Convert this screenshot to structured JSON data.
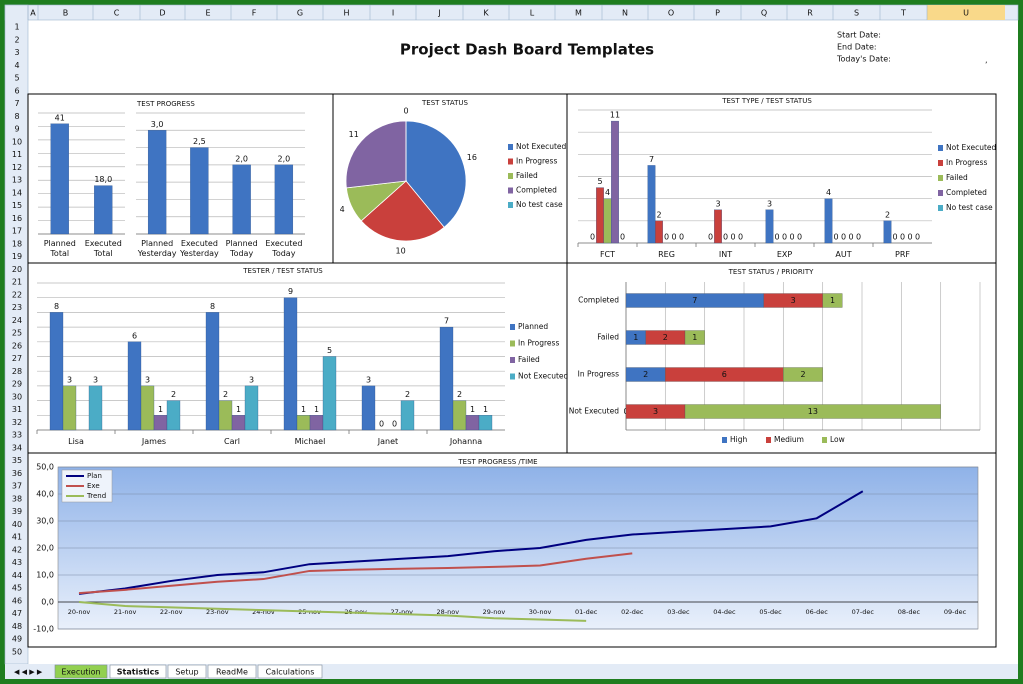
{
  "spreadsheet": {
    "columns": [
      "A",
      "B",
      "C",
      "D",
      "E",
      "F",
      "G",
      "H",
      "I",
      "J",
      "K",
      "L",
      "M",
      "N",
      "O",
      "P",
      "Q",
      "R",
      "S",
      "T",
      "U"
    ],
    "rows": [
      1,
      2,
      3,
      4,
      5,
      6,
      7,
      8,
      9,
      10,
      11,
      12,
      13,
      14,
      15,
      16,
      17,
      18,
      19,
      20,
      21,
      22,
      23,
      24,
      25,
      26,
      27,
      28,
      29,
      30,
      31,
      32,
      33,
      34,
      35,
      36,
      37,
      38,
      39,
      40,
      41,
      42,
      43,
      44,
      45,
      46,
      47,
      48,
      49,
      50
    ],
    "title": "Project Dash Board Templates",
    "date_labels": [
      "Start Date:",
      "End Date:",
      "Today's Date:"
    ],
    "mark": ",",
    "sheet_tabs": [
      "Execution",
      "Statistics",
      "Setup",
      "ReadMe",
      "Calculations"
    ]
  },
  "chart_data": [
    {
      "type": "bar",
      "title": "TEST PROGRESS",
      "categories": [
        "Planned Total",
        "Executed Total"
      ],
      "values": [
        41,
        18
      ],
      "value_labels": [
        "41",
        "18,0"
      ],
      "color": "#3f74c2",
      "ylim": [
        0,
        45
      ],
      "yticks": [
        0,
        5,
        10,
        15,
        20,
        25,
        30,
        35,
        40,
        45
      ],
      "grid": true
    },
    {
      "type": "bar",
      "categories": [
        "Planned Yesterday",
        "Executed Yesterday",
        "Planned Today",
        "Executed Today"
      ],
      "values": [
        3,
        2.5,
        2,
        2
      ],
      "value_labels": [
        "3,0",
        "2,5",
        "2,0",
        "2,0"
      ],
      "color": "#3f74c2",
      "ylim": [
        0,
        3.5
      ],
      "yticks": [
        0,
        0.5,
        1,
        1.5,
        2,
        2.5,
        3,
        3.5
      ],
      "grid": true
    },
    {
      "type": "pie",
      "title": "TEST STATUS",
      "categories": [
        "Not Executed",
        "In Progress",
        "Failed",
        "Completed",
        "No test case"
      ],
      "values": [
        16,
        10,
        4,
        11,
        0
      ],
      "colors": [
        "#3f74c2",
        "#c9403c",
        "#9bbb59",
        "#8064a2",
        "#4bacc6"
      ],
      "legend": "right"
    },
    {
      "type": "bar",
      "title": "TEST TYPE / TEST STATUS",
      "categories": [
        "FCT",
        "REG",
        "INT",
        "EXP",
        "AUT",
        "PRF"
      ],
      "series": [
        {
          "name": "Not Executed",
          "color": "#3f74c2",
          "values": [
            0,
            7,
            0,
            3,
            4,
            2
          ]
        },
        {
          "name": "In Progress",
          "color": "#c9403c",
          "values": [
            5,
            2,
            3,
            0,
            0,
            0
          ]
        },
        {
          "name": "Failed",
          "color": "#9bbb59",
          "values": [
            4,
            0,
            0,
            0,
            0,
            0
          ]
        },
        {
          "name": "Completed",
          "color": "#8064a2",
          "values": [
            11,
            0,
            0,
            0,
            0,
            0
          ]
        },
        {
          "name": "No test case",
          "color": "#4bacc6",
          "values": [
            0,
            0,
            0,
            0,
            0,
            0
          ]
        }
      ],
      "ylim": [
        0,
        12
      ],
      "yticks": [
        0,
        2,
        4,
        6,
        8,
        10,
        12
      ],
      "grid": true,
      "legend": "right"
    },
    {
      "type": "bar",
      "title": "TESTER / TEST STATUS",
      "categories": [
        "Lisa",
        "James",
        "Carl",
        "Michael",
        "Janet",
        "Johanna"
      ],
      "series": [
        {
          "name": "Planned",
          "color": "#3f74c2",
          "values": [
            8,
            6,
            8,
            9,
            3,
            7
          ]
        },
        {
          "name": "In Progress",
          "color": "#9bbb59",
          "values": [
            3,
            3,
            2,
            1,
            0,
            2
          ]
        },
        {
          "name": "Failed",
          "color": "#8064a2",
          "values": [
            null,
            1,
            1,
            1,
            0,
            1
          ]
        },
        {
          "name": "Not Executed",
          "color": "#4bacc6",
          "values": [
            3,
            2,
            3,
            5,
            2,
            1
          ]
        }
      ],
      "ylim": [
        0,
        10
      ],
      "yticks": [
        0,
        1,
        2,
        3,
        4,
        5,
        6,
        7,
        8,
        9,
        10
      ],
      "grid": true,
      "legend": "right"
    },
    {
      "type": "barh_stacked",
      "title": "TEST STATUS / PRIORITY",
      "categories": [
        "Completed",
        "Failed",
        "In Progress",
        "Not Executed"
      ],
      "series": [
        {
          "name": "High",
          "color": "#3f74c2",
          "values": [
            7,
            1,
            2,
            0
          ]
        },
        {
          "name": "Medium",
          "color": "#c9403c",
          "values": [
            3,
            2,
            6,
            3
          ]
        },
        {
          "name": "Low",
          "color": "#9bbb59",
          "values": [
            1,
            1,
            2,
            13
          ]
        }
      ],
      "xlim": [
        0,
        18
      ],
      "xticks": [
        0,
        2,
        4,
        6,
        8,
        10,
        12,
        14,
        16,
        18
      ],
      "grid": true,
      "legend": "bottom"
    },
    {
      "type": "line",
      "title": "TEST PROGRESS /TIME",
      "x": [
        "20-nov",
        "21-nov",
        "22-nov",
        "23-nov",
        "24-nov",
        "25-nov",
        "26-nov",
        "27-nov",
        "28-nov",
        "29-nov",
        "30-nov",
        "01-dec",
        "02-dec",
        "03-dec",
        "04-dec",
        "05-dec",
        "06-dec",
        "07-dec",
        "08-dec",
        "09-dec"
      ],
      "series": [
        {
          "name": "Plan",
          "color": "#000080",
          "values": [
            3,
            5,
            7.8,
            10,
            11,
            14,
            15,
            16,
            17,
            18.8,
            20,
            23,
            25,
            26,
            27,
            28,
            31,
            41,
            null,
            null
          ]
        },
        {
          "name": "Exe",
          "color": "#c0504d",
          "values": [
            3.3,
            4.5,
            6,
            7.5,
            8.5,
            11.5,
            12,
            12.3,
            12.6,
            13,
            13.5,
            16,
            18,
            null,
            null,
            null,
            null,
            null,
            null,
            null
          ]
        },
        {
          "name": "Trend",
          "color": "#9bbb59",
          "values": [
            0,
            -1.5,
            -2,
            -2.5,
            -3,
            -3.5,
            -4,
            -4.5,
            -5,
            -6,
            -6.5,
            -7,
            null,
            null,
            null,
            null,
            null,
            null,
            null,
            null
          ]
        }
      ],
      "ylim": [
        -10,
        50
      ],
      "yticks": [
        {
          "value": -10,
          "label": "-10,0"
        },
        {
          "value": 0,
          "label": "0,0"
        },
        {
          "value": 10,
          "label": "10,0"
        },
        {
          "value": 20,
          "label": "20,0"
        },
        {
          "value": 30,
          "label": "30,0"
        },
        {
          "value": 40,
          "label": "40,0"
        },
        {
          "value": 50,
          "label": "50,0"
        }
      ],
      "grid": true,
      "legend": "top-left"
    }
  ]
}
